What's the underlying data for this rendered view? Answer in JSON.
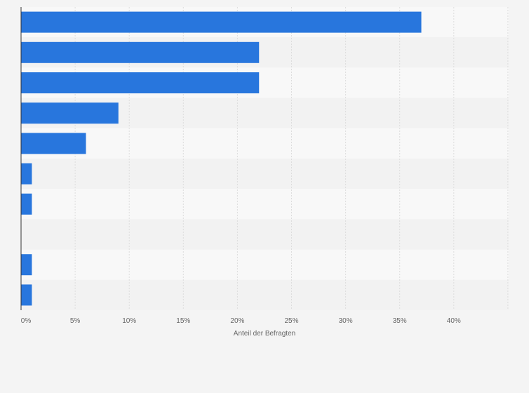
{
  "chart_data": {
    "type": "bar",
    "orientation": "horizontal",
    "categories": [
      "",
      "",
      "",
      "",
      "",
      "",
      "",
      "",
      "",
      ""
    ],
    "values": [
      37,
      22,
      22,
      9,
      6,
      1,
      1,
      0,
      1,
      1
    ],
    "xlabel": "Anteil der Befragten",
    "ylabel": "",
    "xlim": [
      0,
      45
    ],
    "x_ticks": [
      0,
      5,
      10,
      15,
      20,
      25,
      30,
      35,
      40
    ],
    "tick_format_suffix": "%",
    "grid": true,
    "legend": "none"
  },
  "colors": {
    "bar": "#2876dd",
    "band_light": "#f8f8f8",
    "band_dark": "#f2f2f2",
    "grid": "#dddddd",
    "axis": "#333333",
    "background": "#f4f4f4"
  }
}
